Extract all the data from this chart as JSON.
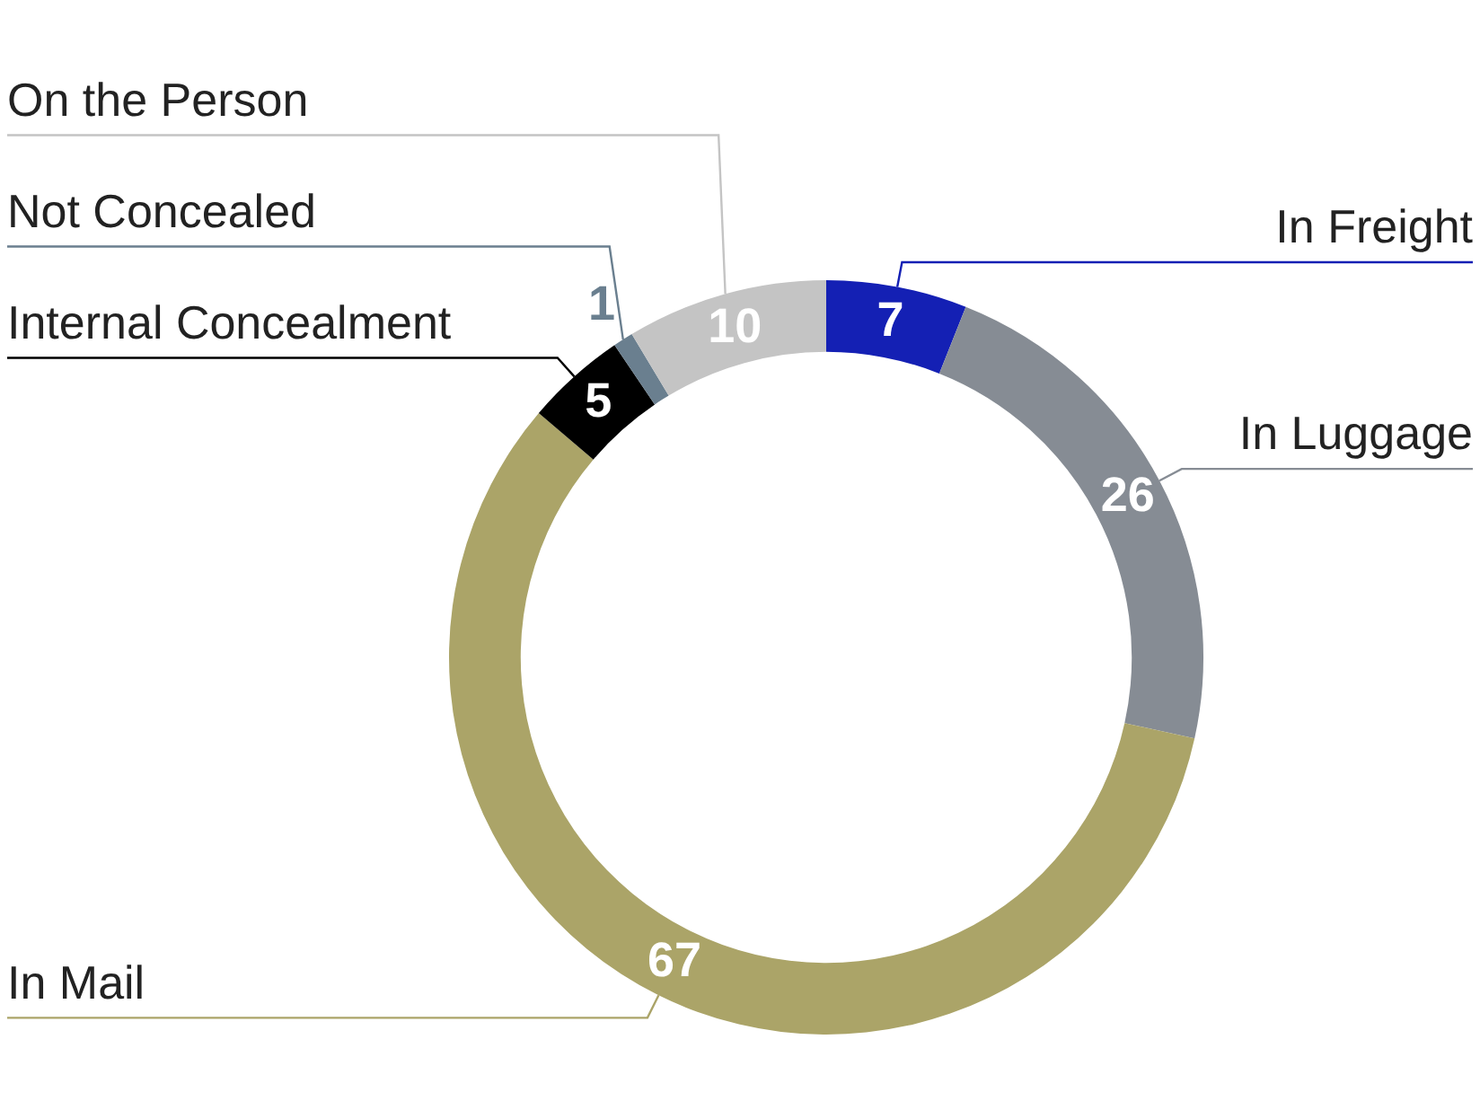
{
  "chart_data": {
    "type": "donut",
    "categories": [
      "In Freight",
      "In Luggage",
      "In Mail",
      "Internal Concealment",
      "Not Concealed",
      "On the Person"
    ],
    "values": [
      7,
      26,
      67,
      5,
      1,
      10
    ],
    "colors": [
      "#1420b4",
      "#868c94",
      "#aba468",
      "#000000",
      "#6a7f8f",
      "#c4c4c4"
    ],
    "data_labels": true,
    "legend": false
  }
}
